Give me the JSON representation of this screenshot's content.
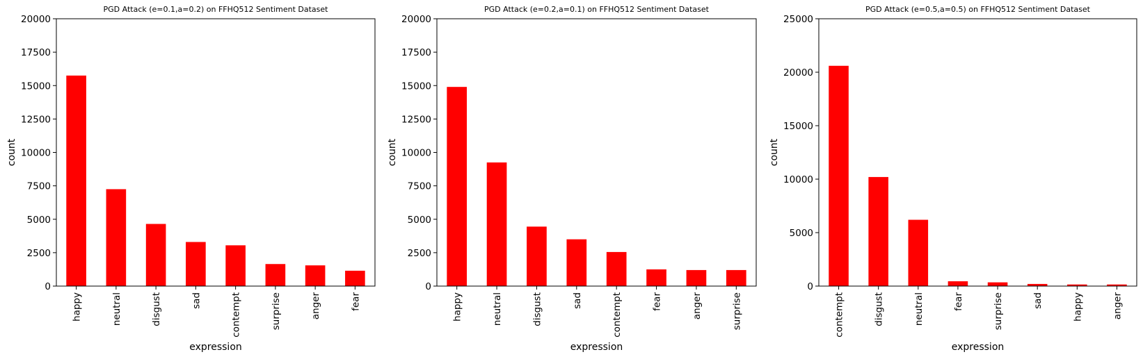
{
  "chart_data": [
    {
      "type": "bar",
      "title": "PGD Attack (e=0.1,a=0.2) on FFHQ512 Sentiment Dataset",
      "xlabel": "expression",
      "ylabel": "count",
      "ylim": [
        0,
        20000
      ],
      "yticks": [
        "0",
        "2500",
        "5000",
        "7500",
        "10000",
        "12500",
        "15000",
        "17500",
        "20000"
      ],
      "categories": [
        "happy",
        "neutral",
        "disgust",
        "sad",
        "contempt",
        "surprise",
        "anger",
        "fear"
      ],
      "values": [
        15750,
        7250,
        4650,
        3300,
        3050,
        1650,
        1550,
        1150
      ],
      "color": "#ff0000",
      "grid": false
    },
    {
      "type": "bar",
      "title": "PGD Attack (e=0.2,a=0.1) on FFHQ512 Sentiment Dataset",
      "xlabel": "expression",
      "ylabel": "count",
      "ylim": [
        0,
        20000
      ],
      "yticks": [
        "0",
        "2500",
        "5000",
        "7500",
        "10000",
        "12500",
        "15000",
        "17500",
        "20000"
      ],
      "categories": [
        "happy",
        "neutral",
        "disgust",
        "sad",
        "contempt",
        "fear",
        "anger",
        "surprise"
      ],
      "values": [
        14900,
        9250,
        4450,
        3500,
        2550,
        1250,
        1200,
        1200
      ],
      "color": "#ff0000",
      "grid": false
    },
    {
      "type": "bar",
      "title": "PGD Attack (e=0.5,a=0.5) on FFHQ512 Sentiment Dataset",
      "xlabel": "expression",
      "ylabel": "count",
      "ylim": [
        0,
        25000
      ],
      "yticks": [
        "0",
        "5000",
        "10000",
        "15000",
        "20000",
        "25000"
      ],
      "categories": [
        "contempt",
        "disgust",
        "neutral",
        "fear",
        "surprise",
        "sad",
        "happy",
        "anger"
      ],
      "values": [
        20600,
        10200,
        6200,
        450,
        350,
        200,
        150,
        150
      ],
      "color": "#ff0000",
      "grid": false
    }
  ]
}
